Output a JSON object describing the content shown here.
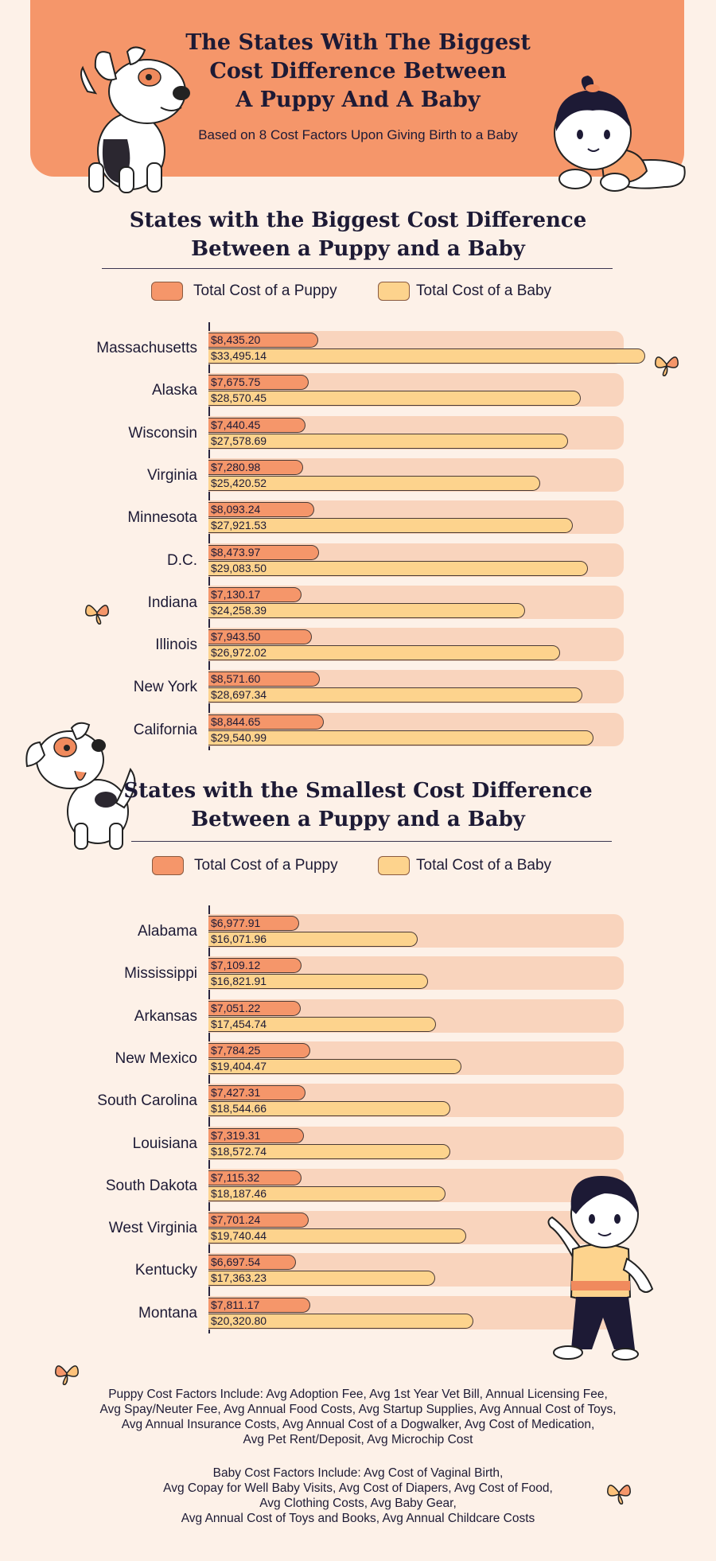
{
  "header": {
    "title_lines": [
      "The States With The Biggest",
      "Cost Difference Between",
      "A Puppy And A Baby"
    ],
    "subtitle": "Based on 8 Cost Factors Upon Giving Birth to a Baby"
  },
  "colors": {
    "puppy": "#f5966a",
    "baby": "#fdd38d",
    "banner": "#f5966a",
    "background": "#fdf1e8",
    "row_background": "#f9d4bd",
    "text": "#1d1a35"
  },
  "icons": [
    "dog-illustration",
    "baby-illustration",
    "butterfly-icon"
  ],
  "chart_data": [
    {
      "type": "bar",
      "orientation": "horizontal",
      "title": "States with the Biggest  Cost Difference Between a Puppy and a Baby",
      "title_lines": [
        "States with the Biggest  Cost Difference",
        "Between a Puppy and a Baby"
      ],
      "legend": [
        "Total Cost of a Puppy",
        "Total Cost of a Baby"
      ],
      "xlim": [
        0,
        36000
      ],
      "categories": [
        "Massachusetts",
        "Alaska",
        "Wisconsin",
        "Virginia",
        "Minnesota",
        "D.C.",
        "Indiana",
        "Illinois",
        "New York",
        "California"
      ],
      "series": [
        {
          "name": "Total Cost of a Puppy",
          "values": [
            8435.2,
            7675.75,
            7440.45,
            7280.98,
            8093.24,
            8473.97,
            7130.17,
            7943.5,
            8571.6,
            8844.65
          ],
          "labels": [
            "$8,435.20",
            "$7,675.75",
            "$7,440.45",
            "$7,280.98",
            "$8,093.24",
            "$8,473.97",
            "$7,130.17",
            "$7,943.50",
            "$8,571.60",
            "$8,844.65"
          ]
        },
        {
          "name": "Total Cost of a Baby",
          "values": [
            33495.14,
            28570.45,
            27578.69,
            25420.52,
            27921.53,
            29083.5,
            24258.39,
            26972.02,
            28697.34,
            29540.99
          ],
          "labels": [
            "$33,495.14",
            "$28,570.45",
            "$27,578.69",
            "$25,420.52",
            "$27,921.53",
            "$29,083.50",
            "$24,258.39",
            "$26,972.02",
            "$28,697.34",
            "$29,540.99"
          ]
        }
      ]
    },
    {
      "type": "bar",
      "orientation": "horizontal",
      "title": "States with the Smallest Cost Difference Between a Puppy and a Baby",
      "title_lines": [
        "States with the Smallest Cost Difference",
        "Between a Puppy and a Baby"
      ],
      "legend": [
        "Total Cost of a Puppy",
        "Total Cost of a Baby"
      ],
      "xlim": [
        0,
        36000
      ],
      "categories": [
        "Alabama",
        "Mississippi",
        "Arkansas",
        "New Mexico",
        "South Carolina",
        "Louisiana",
        "South Dakota",
        "West Virginia",
        "Kentucky",
        "Montana"
      ],
      "series": [
        {
          "name": "Total Cost of a Puppy",
          "values": [
            6977.91,
            7109.12,
            7051.22,
            7784.25,
            7427.31,
            7319.31,
            7115.32,
            7701.24,
            6697.54,
            7811.17
          ],
          "labels": [
            "$6,977.91",
            "$7,109.12",
            "$7,051.22",
            "$7,784.25",
            "$7,427.31",
            "$7,319.31",
            "$7,115.32",
            "$7,701.24",
            "$6,697.54",
            "$7,811.17"
          ]
        },
        {
          "name": "Total Cost of a Baby",
          "values": [
            16071.96,
            16821.91,
            17454.74,
            19404.47,
            18544.66,
            18572.74,
            18187.46,
            19740.44,
            17363.23,
            20320.8
          ],
          "labels": [
            "$16,071.96",
            "$16,821.91",
            "$17,454.74",
            "$19,404.47",
            "$18,544.66",
            "$18,572.74",
            "$18,187.46",
            "$19,740.44",
            "$17,363.23",
            "$20,320.80"
          ]
        }
      ]
    }
  ],
  "notes": {
    "puppy_factors": [
      "Puppy Cost Factors Include: Avg Adoption Fee, Avg 1st Year Vet Bill, Annual Licensing Fee,",
      "Avg Spay/Neuter Fee, Avg Annual Food Costs, Avg Startup Supplies, Avg Annual Cost of Toys,",
      "Avg Annual Insurance Costs, Avg Annual Cost of a Dogwalker, Avg Cost of Medication,",
      "Avg Pet Rent/Deposit, Avg Microchip Cost"
    ],
    "baby_factors": [
      "Baby Cost Factors Include: Avg Cost of Vaginal Birth,",
      "Avg Copay for Well Baby Visits, Avg Cost of Diapers, Avg Cost of Food,",
      "Avg Clothing Costs, Avg Baby Gear,",
      "Avg Annual Cost of Toys and Books, Avg Annual Childcare Costs"
    ]
  }
}
